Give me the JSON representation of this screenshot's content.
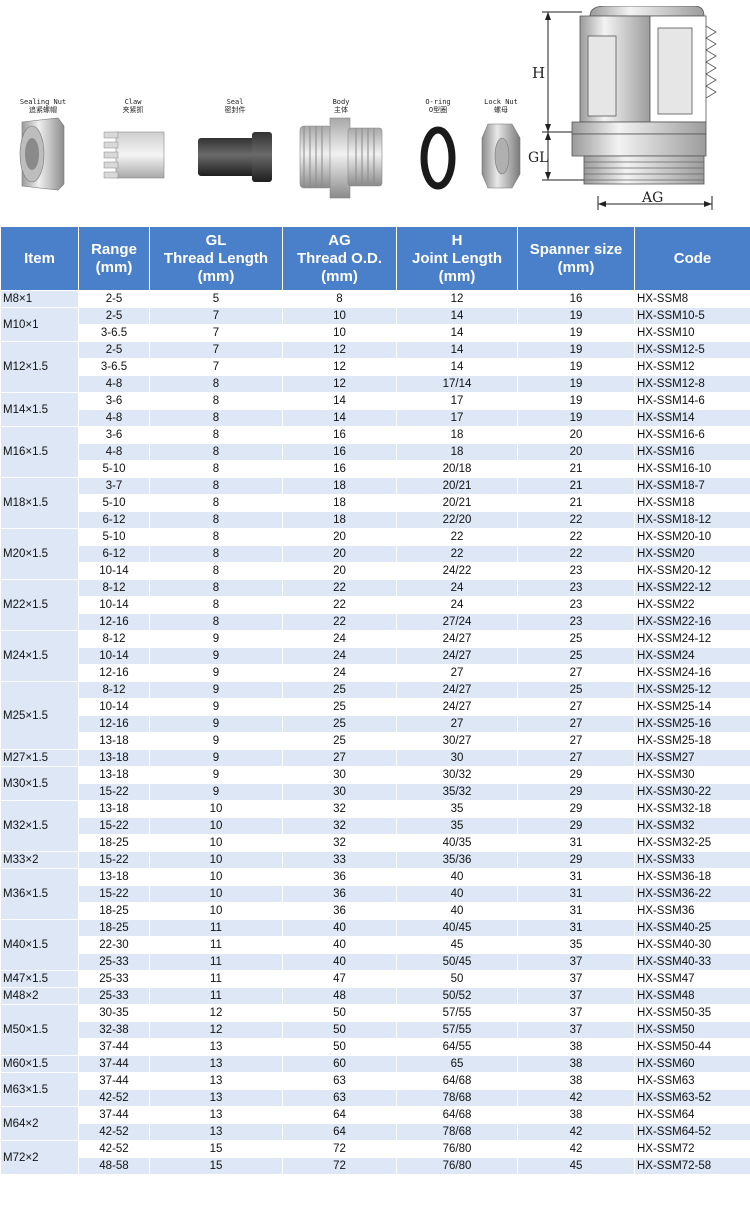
{
  "parts": [
    {
      "en": "Sealing Nut",
      "cn": "追紧螺帽"
    },
    {
      "en": "Claw",
      "cn": "夹紧抓"
    },
    {
      "en": "Seal",
      "cn": "密封件"
    },
    {
      "en": "Body",
      "cn": "主体"
    },
    {
      "en": "O-ring",
      "cn": "O型圈"
    },
    {
      "en": "Lock Nut",
      "cn": "螺母"
    }
  ],
  "diagram_labels": {
    "h": "H",
    "gl": "GL",
    "ag": "AG"
  },
  "headers": {
    "item": "Item",
    "range": "Range\n(mm)",
    "gl": "GL\nThread Length\n(mm)",
    "ag": "AG\nThread O.D.\n(mm)",
    "h": "H\nJoint Length\n(mm)",
    "spanner": "Spanner size\n(mm)",
    "code": "Code"
  },
  "groups": [
    {
      "item": "M8×1",
      "rows": [
        [
          "2-5",
          "5",
          "8",
          "12",
          "16",
          "HX-SSM8"
        ]
      ]
    },
    {
      "item": "M10×1",
      "rows": [
        [
          "2-5",
          "7",
          "10",
          "14",
          "19",
          "HX-SSM10-5"
        ],
        [
          "3-6.5",
          "7",
          "10",
          "14",
          "19",
          "HX-SSM10"
        ]
      ]
    },
    {
      "item": "M12×1.5",
      "rows": [
        [
          "2-5",
          "7",
          "12",
          "14",
          "19",
          "HX-SSM12-5"
        ],
        [
          "3-6.5",
          "7",
          "12",
          "14",
          "19",
          "HX-SSM12"
        ],
        [
          "4-8",
          "8",
          "12",
          "17/14",
          "19",
          "HX-SSM12-8"
        ]
      ]
    },
    {
      "item": "M14×1.5",
      "rows": [
        [
          "3-6",
          "8",
          "14",
          "17",
          "19",
          "HX-SSM14-6"
        ],
        [
          "4-8",
          "8",
          "14",
          "17",
          "19",
          "HX-SSM14"
        ]
      ]
    },
    {
      "item": "M16×1.5",
      "rows": [
        [
          "3-6",
          "8",
          "16",
          "18",
          "20",
          "HX-SSM16-6"
        ],
        [
          "4-8",
          "8",
          "16",
          "18",
          "20",
          "HX-SSM16"
        ],
        [
          "5-10",
          "8",
          "16",
          "20/18",
          "21",
          "HX-SSM16-10"
        ]
      ]
    },
    {
      "item": "M18×1.5",
      "rows": [
        [
          "3-7",
          "8",
          "18",
          "20/21",
          "21",
          "HX-SSM18-7"
        ],
        [
          "5-10",
          "8",
          "18",
          "20/21",
          "21",
          "HX-SSM18"
        ],
        [
          "6-12",
          "8",
          "18",
          "22/20",
          "22",
          "HX-SSM18-12"
        ]
      ]
    },
    {
      "item": "M20×1.5",
      "rows": [
        [
          "5-10",
          "8",
          "20",
          "22",
          "22",
          "HX-SSM20-10"
        ],
        [
          "6-12",
          "8",
          "20",
          "22",
          "22",
          "HX-SSM20"
        ],
        [
          "10-14",
          "8",
          "20",
          "24/22",
          "23",
          "HX-SSM20-12"
        ]
      ]
    },
    {
      "item": "M22×1.5",
      "rows": [
        [
          "8-12",
          "8",
          "22",
          "24",
          "23",
          "HX-SSM22-12"
        ],
        [
          "10-14",
          "8",
          "22",
          "24",
          "23",
          "HX-SSM22"
        ],
        [
          "12-16",
          "8",
          "22",
          "27/24",
          "23",
          "HX-SSM22-16"
        ]
      ]
    },
    {
      "item": "M24×1.5",
      "rows": [
        [
          "8-12",
          "9",
          "24",
          "24/27",
          "25",
          "HX-SSM24-12"
        ],
        [
          "10-14",
          "9",
          "24",
          "24/27",
          "25",
          "HX-SSM24"
        ],
        [
          "12-16",
          "9",
          "24",
          "27",
          "27",
          "HX-SSM24-16"
        ]
      ]
    },
    {
      "item": "M25×1.5",
      "rows": [
        [
          "8-12",
          "9",
          "25",
          "24/27",
          "25",
          "HX-SSM25-12"
        ],
        [
          "10-14",
          "9",
          "25",
          "24/27",
          "27",
          "HX-SSM25-14"
        ],
        [
          "12-16",
          "9",
          "25",
          "27",
          "27",
          "HX-SSM25-16"
        ],
        [
          "13-18",
          "9",
          "25",
          "30/27",
          "27",
          "HX-SSM25-18"
        ]
      ]
    },
    {
      "item": "M27×1.5",
      "rows": [
        [
          "13-18",
          "9",
          "27",
          "30",
          "27",
          "HX-SSM27"
        ]
      ]
    },
    {
      "item": "M30×1.5",
      "rows": [
        [
          "13-18",
          "9",
          "30",
          "30/32",
          "29",
          "HX-SSM30"
        ],
        [
          "15-22",
          "9",
          "30",
          "35/32",
          "29",
          "HX-SSM30-22"
        ]
      ]
    },
    {
      "item": "M32×1.5",
      "rows": [
        [
          "13-18",
          "10",
          "32",
          "35",
          "29",
          "HX-SSM32-18"
        ],
        [
          "15-22",
          "10",
          "32",
          "35",
          "29",
          "HX-SSM32"
        ],
        [
          "18-25",
          "10",
          "32",
          "40/35",
          "31",
          "HX-SSM32-25"
        ]
      ]
    },
    {
      "item": "M33×2",
      "rows": [
        [
          "15-22",
          "10",
          "33",
          "35/36",
          "29",
          "HX-SSM33"
        ]
      ]
    },
    {
      "item": "M36×1.5",
      "rows": [
        [
          "13-18",
          "10",
          "36",
          "40",
          "31",
          "HX-SSM36-18"
        ],
        [
          "15-22",
          "10",
          "36",
          "40",
          "31",
          "HX-SSM36-22"
        ],
        [
          "18-25",
          "10",
          "36",
          "40",
          "31",
          "HX-SSM36"
        ]
      ]
    },
    {
      "item": "M40×1.5",
      "rows": [
        [
          "18-25",
          "11",
          "40",
          "40/45",
          "31",
          "HX-SSM40-25"
        ],
        [
          "22-30",
          "11",
          "40",
          "45",
          "35",
          "HX-SSM40-30"
        ],
        [
          "25-33",
          "11",
          "40",
          "50/45",
          "37",
          "HX-SSM40-33"
        ]
      ]
    },
    {
      "item": "M47×1.5",
      "rows": [
        [
          "25-33",
          "11",
          "47",
          "50",
          "37",
          "HX-SSM47"
        ]
      ]
    },
    {
      "item": "M48×2",
      "rows": [
        [
          "25-33",
          "11",
          "48",
          "50/52",
          "37",
          "HX-SSM48"
        ]
      ]
    },
    {
      "item": "M50×1.5",
      "rows": [
        [
          "30-35",
          "12",
          "50",
          "57/55",
          "37",
          "HX-SSM50-35"
        ],
        [
          "32-38",
          "12",
          "50",
          "57/55",
          "37",
          "HX-SSM50"
        ],
        [
          "37-44",
          "13",
          "50",
          "64/55",
          "38",
          "HX-SSM50-44"
        ]
      ]
    },
    {
      "item": "M60×1.5",
      "rows": [
        [
          "37-44",
          "13",
          "60",
          "65",
          "38",
          "HX-SSM60"
        ]
      ]
    },
    {
      "item": "M63×1.5",
      "rows": [
        [
          "37-44",
          "13",
          "63",
          "64/68",
          "38",
          "HX-SSM63"
        ],
        [
          "42-52",
          "13",
          "63",
          "78/68",
          "42",
          "HX-SSM63-52"
        ]
      ]
    },
    {
      "item": "M64×2",
      "rows": [
        [
          "37-44",
          "13",
          "64",
          "64/68",
          "38",
          "HX-SSM64"
        ],
        [
          "42-52",
          "13",
          "64",
          "78/68",
          "42",
          "HX-SSM64-52"
        ]
      ]
    },
    {
      "item": "M72×2",
      "rows": [
        [
          "42-52",
          "15",
          "72",
          "76/80",
          "42",
          "HX-SSM72"
        ],
        [
          "48-58",
          "15",
          "72",
          "76/80",
          "45",
          "HX-SSM72-58"
        ]
      ]
    }
  ]
}
